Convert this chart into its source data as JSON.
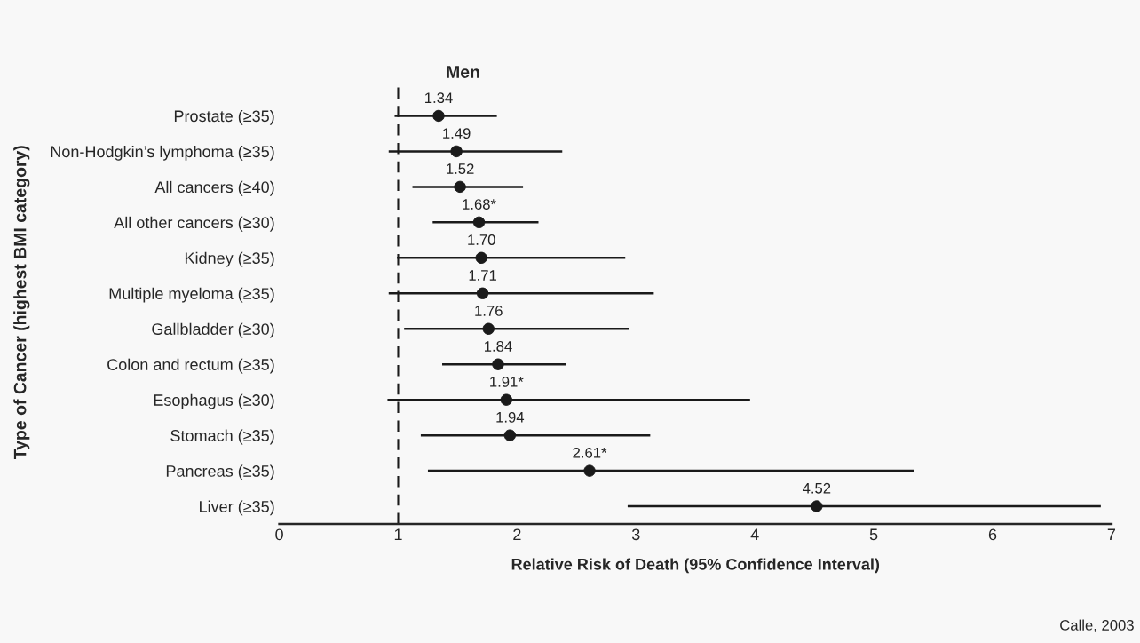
{
  "chart_data": {
    "type": "scatter",
    "orientation": "horizontal",
    "title": "Men",
    "xlabel": "Relative Risk of Death (95% Confidence Interval)",
    "ylabel": "Type of Cancer (highest BMI category)",
    "categories": [
      "Prostate (≥35)",
      "Non-Hodgkin’s lymphoma (≥35)",
      "All cancers (≥40)",
      "All other cancers (≥30)",
      "Kidney (≥35)",
      "Multiple myeloma (≥35)",
      "Gallbladder (≥30)",
      "Colon and rectum (≥35)",
      "Esophagus (≥30)",
      "Stomach (≥35)",
      "Pancreas (≥35)",
      "Liver (≥35)"
    ],
    "values": [
      1.34,
      1.49,
      1.52,
      1.68,
      1.7,
      1.71,
      1.76,
      1.84,
      1.91,
      1.94,
      2.61,
      4.52
    ],
    "value_labels": [
      "1.34",
      "1.49",
      "1.52",
      "1.68*",
      "1.70",
      "1.71",
      "1.76",
      "1.84",
      "1.91*",
      "1.94",
      "2.61*",
      "4.52"
    ],
    "errors": [
      [
        0.97,
        1.83
      ],
      [
        0.92,
        2.38
      ],
      [
        1.12,
        2.05
      ],
      [
        1.29,
        2.18
      ],
      [
        0.99,
        2.91
      ],
      [
        0.92,
        3.15
      ],
      [
        1.05,
        2.94
      ],
      [
        1.37,
        2.41
      ],
      [
        0.91,
        3.96
      ],
      [
        1.19,
        3.12
      ],
      [
        1.25,
        5.34
      ],
      [
        2.93,
        6.91
      ]
    ],
    "color": "#1a1a1a",
    "marker": "circle",
    "xlim": [
      0,
      7
    ],
    "xticks": [
      0,
      1,
      2,
      3,
      4,
      5,
      6,
      7
    ],
    "ref_lines": [
      {
        "axis": "x",
        "value": 1,
        "line_style": "dashed",
        "color": "#1a1a1a"
      }
    ],
    "grid": false,
    "annotations": [
      "Calle, 2003"
    ]
  }
}
